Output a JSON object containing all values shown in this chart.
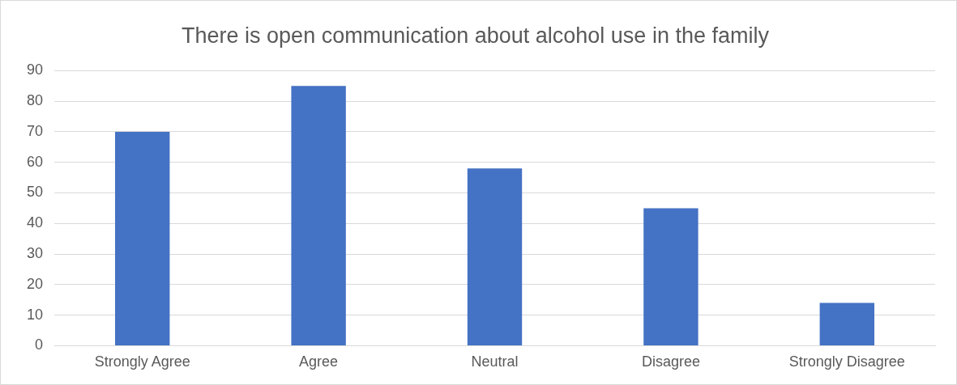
{
  "chart_data": {
    "type": "bar",
    "title": "There is open communication about alcohol use in the family",
    "categories": [
      "Strongly Agree",
      "Agree",
      "Neutral",
      "Disagree",
      "Strongly Disagree"
    ],
    "values": [
      70,
      85,
      58,
      45,
      14
    ],
    "color": "#4472c4",
    "ylim": [
      0,
      90
    ],
    "yticks": [
      0,
      10,
      20,
      30,
      40,
      50,
      60,
      70,
      80,
      90
    ],
    "grid": "y",
    "legend": false
  }
}
